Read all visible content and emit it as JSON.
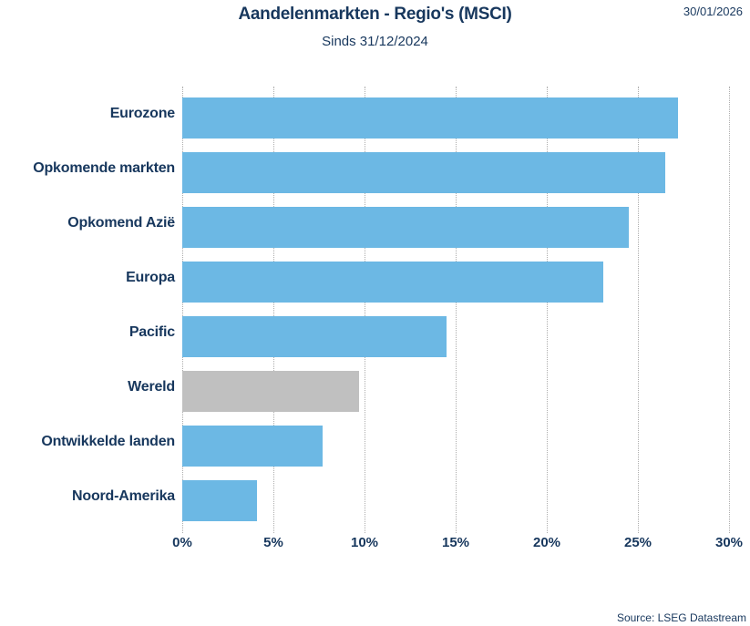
{
  "header": {
    "title": "Aandelenmarkten - Regio's (MSCI)",
    "subtitle": "Sinds 31/12/2024",
    "date": "30/01/2026"
  },
  "footer": {
    "source": "Source: LSEG Datastream"
  },
  "colors": {
    "bar_blue": "#6CB8E4",
    "bar_gray": "#C0C0C0",
    "text_navy": "#17375D",
    "gridline": "#ADADAD"
  },
  "chart_data": {
    "type": "bar",
    "orientation": "horizontal",
    "title": "Aandelenmarkten - Regio's (MSCI)",
    "subtitle": "Sinds 31/12/2024",
    "categories": [
      "Eurozone",
      "Opkomende markten",
      "Opkomend Azië",
      "Europa",
      "Pacific",
      "Wereld",
      "Ontwikkelde landen",
      "Noord-Amerika"
    ],
    "values": [
      27.2,
      26.5,
      24.5,
      23.1,
      14.5,
      9.7,
      7.7,
      4.1
    ],
    "bar_colors": [
      "#6CB8E4",
      "#6CB8E4",
      "#6CB8E4",
      "#6CB8E4",
      "#6CB8E4",
      "#C0C0C0",
      "#6CB8E4",
      "#6CB8E4"
    ],
    "unit": "%",
    "xlim": [
      0,
      30
    ],
    "x_ticks": [
      "0%",
      "5%",
      "10%",
      "15%",
      "20%",
      "25%",
      "30%"
    ],
    "x_tick_values": [
      0,
      5,
      10,
      15,
      20,
      25,
      30
    ],
    "grid": "vertical-dotted",
    "legend": "none"
  }
}
